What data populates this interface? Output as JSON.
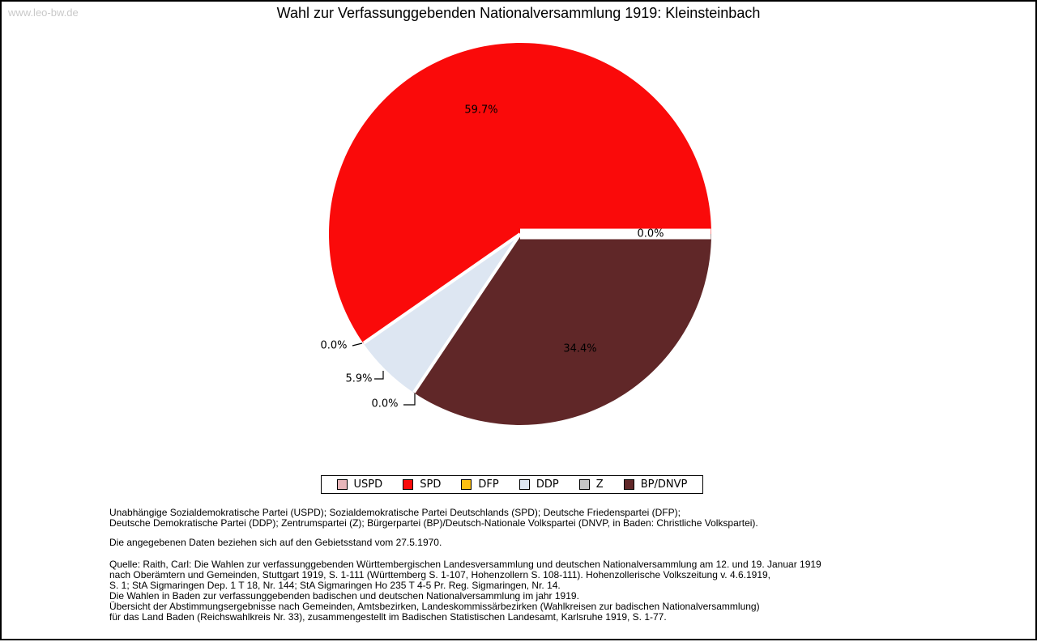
{
  "header": {
    "watermark": "www.leo-bw.de",
    "title": "Wahl zur Verfassunggebenden Nationalversammlung 1919: Kleinsteinbach"
  },
  "chart_data": {
    "type": "pie",
    "title": "Wahl zur Verfassunggebenden Nationalversammlung 1919: Kleinsteinbach",
    "unit": "percent",
    "categories": [
      "USPD",
      "SPD",
      "DFP",
      "DDP",
      "Z",
      "BP/DNVP"
    ],
    "values": [
      0.0,
      59.7,
      0.0,
      5.9,
      0.0,
      34.4
    ],
    "labels": [
      "0.0%",
      "59.7%",
      "0.0%",
      "5.9%",
      "0.0%",
      "34.4%"
    ],
    "colors": [
      "#e7b6ba",
      "#fa0a0a",
      "#fdc011",
      "#dde6f2",
      "#c5c5c5",
      "#602728"
    ],
    "start_angle_deg": 0,
    "direction": "counterclockwise",
    "legend_position": "bottom",
    "slice_border_color": "#ffffff"
  },
  "notes": {
    "abbreviations": [
      "Unabhängige Sozialdemokratische Partei (USPD); Sozialdemokratische Partei Deutschlands (SPD); Deutsche Friedenspartei (DFP);",
      "Deutsche Demokratische Partei (DDP); Zentrumspartei (Z); Bürgerpartei (BP)/Deutsch-Nationale Volkspartei (DNVP, in Baden: Christliche Volkspartei)."
    ],
    "data_note": "Die angegebenen Daten beziehen sich auf den Gebietsstand vom 27.5.1970.",
    "source_lines": [
      "Quelle: Raith, Carl: Die Wahlen zur verfassunggebenden Württembergischen Landesversammlung und deutschen Nationalversammlung am 12. und 19. Januar 1919",
      "nach Oberämtern und Gemeinden, Stuttgart 1919, S. 1-111 (Württemberg S. 1-107, Hohenzollern S. 108-111). Hohenzollerische Volkszeitung v. 4.6.1919,",
      "S. 1; StA Sigmaringen Dep. 1 T 18, Nr. 144; StA Sigmaringen Ho 235 T 4-5 Pr. Reg. Sigmaringen, Nr. 14.",
      "Die Wahlen in Baden zur verfassunggebenden badischen und deutschen Nationalversammlung im jahr 1919.",
      "Übersicht der Abstimmungsergebnisse nach Gemeinden, Amtsbezirken, Landeskommissärbezirken (Wahlkreisen zur badischen Nationalversammlung)",
      "für das Land Baden (Reichswahlkreis Nr. 33), zusammengestellt im Badischen Statistischen Landesamt, Karlsruhe 1919, S. 1-77."
    ]
  }
}
